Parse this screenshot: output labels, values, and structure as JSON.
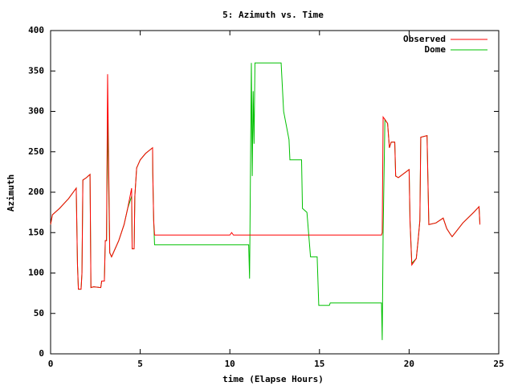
{
  "chart_data": {
    "type": "line",
    "title": "5: Azimuth vs. Time",
    "x_label": "time (Elapse Hours)",
    "y_label": "Azimuth",
    "x": [
      0,
      0.1,
      0.5,
      1.0,
      1.43,
      1.5,
      1.55,
      1.7,
      1.75,
      1.8,
      2.0,
      2.2,
      2.25,
      2.4,
      2.8,
      2.85,
      3.0,
      3.05,
      3.12,
      3.18,
      3.3,
      3.4,
      3.5,
      3.8,
      4.1,
      4.3,
      4.52,
      4.55,
      4.66,
      4.7,
      4.8,
      5.0,
      5.3,
      5.69,
      5.7,
      5.75,
      5.8,
      10.0,
      10.1,
      10.2,
      11.05,
      11.1,
      11.2,
      11.25,
      11.3,
      11.35,
      11.4,
      12.86,
      13.0,
      13.3,
      13.35,
      14.0,
      14.05,
      14.3,
      14.5,
      14.87,
      14.96,
      15.55,
      15.6,
      18.46,
      18.5,
      18.55,
      18.65,
      18.8,
      18.9,
      19.0,
      19.2,
      19.25,
      19.4,
      20.0,
      20.05,
      20.15,
      20.4,
      20.5,
      20.6,
      20.65,
      21.0,
      21.1,
      21.5,
      21.9,
      22.1,
      22.3,
      22.4,
      23.0,
      23.6,
      23.9,
      23.95
    ],
    "series": [
      {
        "name": "Observed",
        "color": "#ff0000",
        "values": [
          160,
          172,
          180,
          192,
          205,
          110,
          80,
          80,
          100,
          215,
          218,
          222,
          82,
          83,
          82,
          90,
          90,
          140,
          140,
          346,
          125,
          120,
          125,
          140,
          160,
          180,
          205,
          130,
          130,
          195,
          230,
          240,
          248,
          255,
          225,
          165,
          147,
          147,
          150,
          147,
          147,
          147,
          147,
          147,
          147,
          147,
          147,
          147,
          147,
          147,
          147,
          147,
          147,
          147,
          147,
          147,
          147,
          147,
          147,
          147,
          150,
          293,
          290,
          285,
          255,
          262,
          262,
          220,
          218,
          228,
          165,
          110,
          118,
          140,
          165,
          268,
          270,
          160,
          162,
          168,
          155,
          148,
          145,
          162,
          175,
          182,
          160
        ]
      },
      {
        "name": "Dome",
        "color": "#00c000",
        "values": [
          160,
          172,
          180,
          192,
          205,
          110,
          80,
          80,
          100,
          215,
          218,
          222,
          82,
          83,
          82,
          90,
          90,
          140,
          140,
          290,
          125,
          120,
          125,
          140,
          160,
          180,
          195,
          130,
          130,
          195,
          230,
          240,
          248,
          255,
          225,
          165,
          135,
          135,
          135,
          135,
          135,
          93,
          360,
          220,
          325,
          260,
          360,
          360,
          300,
          265,
          240,
          240,
          180,
          175,
          120,
          120,
          60,
          60,
          63,
          63,
          17,
          150,
          290,
          285,
          255,
          262,
          262,
          220,
          218,
          228,
          165,
          112,
          118,
          140,
          165,
          268,
          270,
          160,
          162,
          168,
          155,
          148,
          145,
          162,
          175,
          182,
          160
        ]
      }
    ],
    "xlim": [
      0,
      25
    ],
    "xticks": [
      0,
      5,
      10,
      15,
      20,
      25
    ],
    "ylim": [
      0,
      400
    ],
    "yticks": [
      0,
      50,
      100,
      150,
      200,
      250,
      300,
      350,
      400
    ],
    "legend": "upper right",
    "grid": false
  }
}
